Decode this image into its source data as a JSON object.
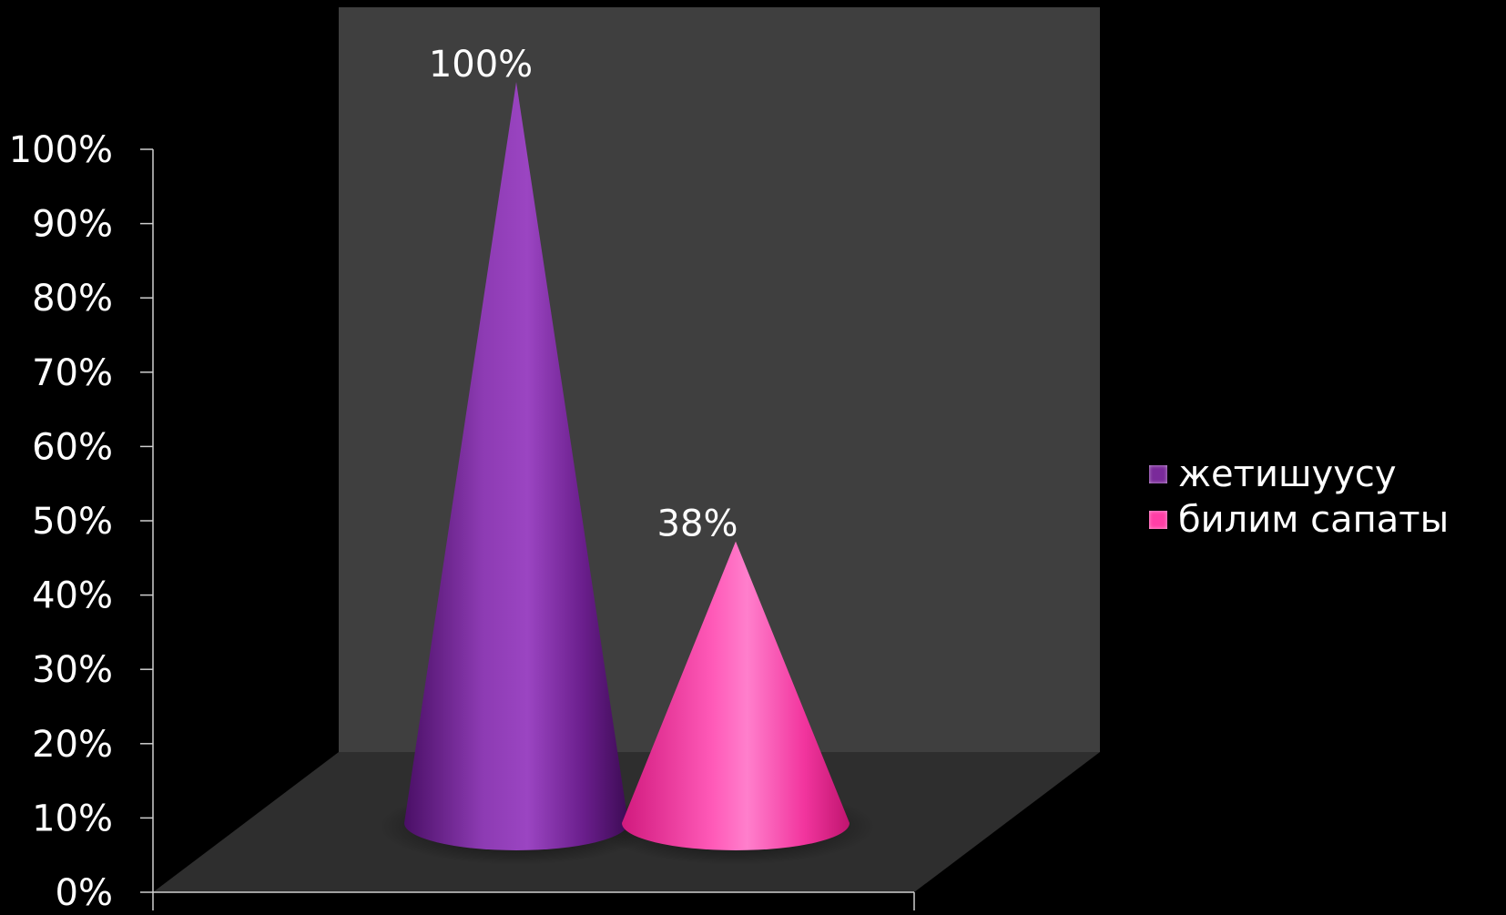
{
  "chart_data": {
    "type": "bar",
    "style": "3d-cone",
    "categories": [
      ""
    ],
    "series": [
      {
        "name": "жетишуусу",
        "values": [
          100
        ],
        "data_label": "100%",
        "color": "#7a2a9a"
      },
      {
        "name": "билим сапаты",
        "values": [
          38
        ],
        "data_label": "38%",
        "color": "#ff3fa6"
      }
    ],
    "ylim": [
      0,
      100
    ],
    "yticks": [
      "0%",
      "10%",
      "20%",
      "30%",
      "40%",
      "50%",
      "60%",
      "70%",
      "80%",
      "90%",
      "100%"
    ],
    "legend_position": "right",
    "colors": {
      "background": "#000000",
      "back_wall": "#3f3f3f",
      "floor": "#2e2e2e",
      "axis_line": "#cfcfcf"
    }
  }
}
